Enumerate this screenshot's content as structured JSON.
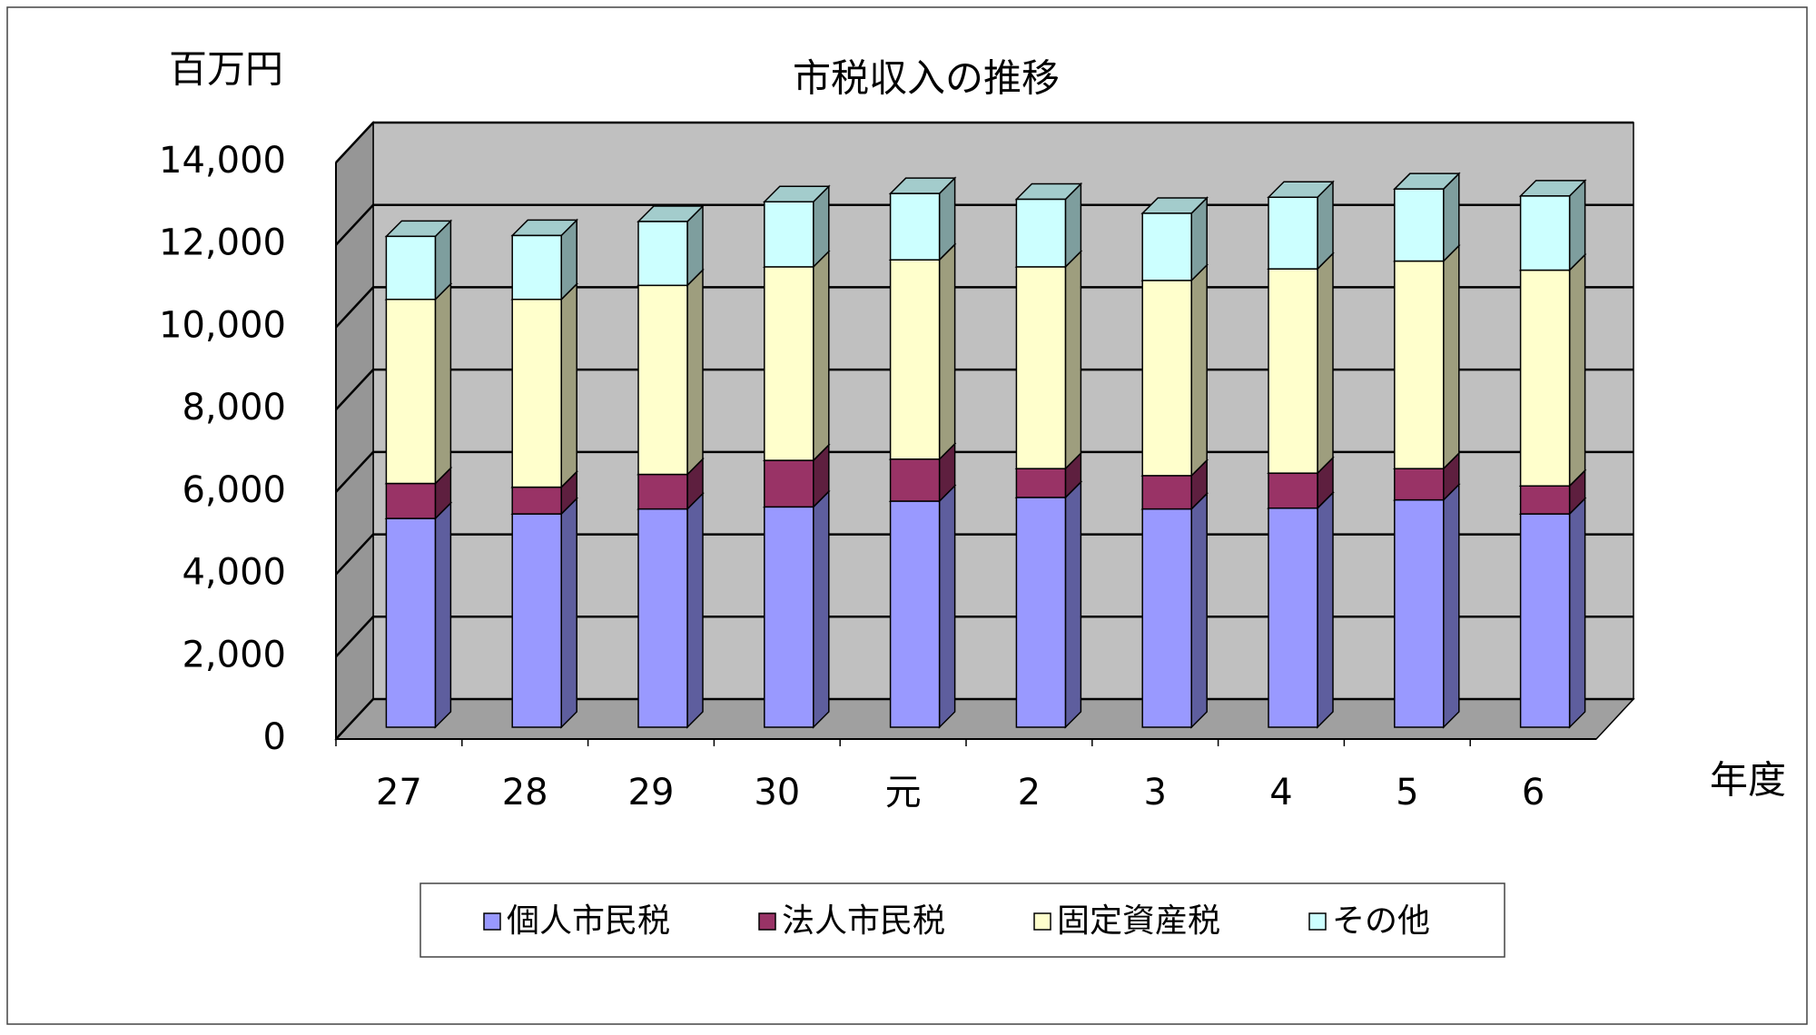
{
  "chart_data": {
    "type": "bar",
    "stacked": true,
    "title": "市税収入の推移",
    "y_axis_label": "百万円",
    "x_axis_label": "年度",
    "categories": [
      "27",
      "28",
      "29",
      "30",
      "元",
      "2",
      "3",
      "4",
      "5",
      "6"
    ],
    "series": [
      {
        "name": "個人市民税",
        "color": "#9999ff",
        "values": [
          5070,
          5180,
          5300,
          5350,
          5490,
          5580,
          5300,
          5320,
          5520,
          5180
        ]
      },
      {
        "name": "法人市民税",
        "color": "#993366",
        "values": [
          850,
          650,
          840,
          1130,
          1020,
          700,
          810,
          850,
          760,
          680
        ]
      },
      {
        "name": "固定資産税",
        "color": "#ffffcc",
        "values": [
          4470,
          4560,
          4590,
          4700,
          4840,
          4900,
          4740,
          4960,
          5040,
          5240
        ]
      },
      {
        "name": "その他",
        "color": "#ccffff",
        "values": [
          1530,
          1550,
          1550,
          1580,
          1610,
          1640,
          1630,
          1740,
          1750,
          1800
        ]
      }
    ],
    "ylim": [
      0,
      14000
    ],
    "yticks": [
      0,
      {
        "value": 2000,
        "label": "2,000"
      },
      {
        "value": 4000,
        "label": "4,000"
      },
      {
        "value": 6000,
        "label": "6,000"
      },
      {
        "value": 8000,
        "label": "8,000"
      },
      {
        "value": 10000,
        "label": "10,000"
      },
      {
        "value": 12000,
        "label": "12,000"
      },
      {
        "value": 14000,
        "label": "14,000"
      }
    ],
    "grid": true,
    "legend": "bottom"
  }
}
